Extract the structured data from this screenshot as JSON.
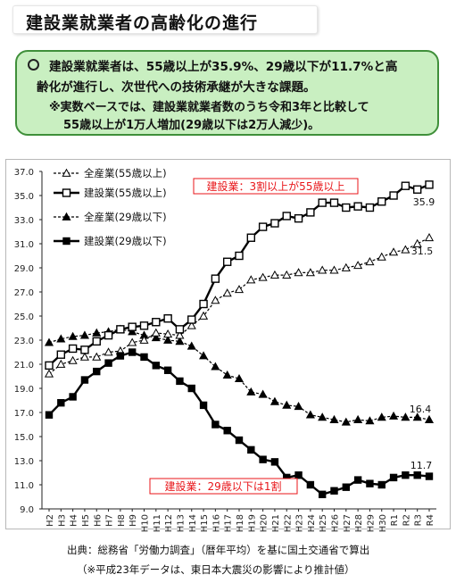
{
  "title": "建設業就業者の高齢化の進行",
  "summary": {
    "bullet_icon": "circle-bullet",
    "line1": "建設業就業者は、55歳以上が35.9%、29歳以下が11.7%と高",
    "line2": "齢化が進行し、次世代への技術承継が大きな課題。",
    "note1": "※実数ベースでは、建設業就業者数のうち令和3年と比較して",
    "note2": "55歳以上が1万人増加(29歳以下は2万人減少)。"
  },
  "chart_data": {
    "type": "line",
    "categories": [
      "H2",
      "H3",
      "H4",
      "H5",
      "H6",
      "H7",
      "H8",
      "H9",
      "H10",
      "H11",
      "H12",
      "H13",
      "H14",
      "H15",
      "H16",
      "H17",
      "H18",
      "H19",
      "H20",
      "H21",
      "H22",
      "H23",
      "H24",
      "H25",
      "H26",
      "H27",
      "H28",
      "H29",
      "H30",
      "R1",
      "R2",
      "R3",
      "R4"
    ],
    "yticks": [
      "37.0",
      "35.0",
      "33.0",
      "31.0",
      "29.0",
      "27.0",
      "25.0",
      "23.0",
      "21.0",
      "19.0",
      "17.0",
      "15.0",
      "13.0",
      "11.0",
      "9.0"
    ],
    "ylim": [
      9,
      37
    ],
    "grid": false,
    "legend_position": "top-left",
    "series": [
      {
        "name": "全産業(55歳以上)",
        "marker": "open-triangle",
        "dashed": true,
        "values": [
          20.2,
          21.0,
          21.3,
          21.6,
          21.6,
          22.0,
          22.1,
          22.8,
          23.0,
          23.6,
          23.5,
          23.4,
          24.2,
          25.0,
          26.3,
          26.9,
          27.2,
          28.0,
          28.2,
          28.4,
          28.4,
          28.6,
          28.6,
          28.8,
          28.8,
          29.0,
          29.2,
          29.5,
          29.9,
          30.3,
          30.5,
          31.0,
          31.5
        ]
      },
      {
        "name": "建設業(55歳以上)",
        "marker": "open-square",
        "dashed": false,
        "values": [
          20.9,
          21.8,
          22.3,
          22.2,
          22.9,
          23.4,
          23.9,
          24.1,
          24.2,
          24.5,
          24.8,
          23.9,
          24.7,
          26.0,
          28.1,
          29.5,
          30.0,
          31.5,
          32.4,
          32.7,
          33.3,
          33.1,
          33.6,
          34.4,
          34.4,
          34.0,
          34.1,
          34.0,
          34.5,
          35.0,
          35.8,
          35.5,
          35.9
        ]
      },
      {
        "name": "全産業(29歳以下)",
        "marker": "filled-triangle",
        "dashed": true,
        "values": [
          22.8,
          23.1,
          23.3,
          23.4,
          23.6,
          23.7,
          23.9,
          23.7,
          23.4,
          23.2,
          23.0,
          22.9,
          22.5,
          21.7,
          20.8,
          20.1,
          19.8,
          18.7,
          18.5,
          17.9,
          17.6,
          17.5,
          16.8,
          16.6,
          16.4,
          16.2,
          16.4,
          16.3,
          16.6,
          16.7,
          16.6,
          16.6,
          16.4
        ]
      },
      {
        "name": "建設業(29歳以下)",
        "marker": "filled-square",
        "dashed": false,
        "values": [
          16.8,
          17.8,
          18.3,
          19.7,
          20.4,
          21.1,
          21.7,
          22.0,
          21.6,
          20.9,
          20.5,
          19.6,
          19.0,
          17.6,
          16.0,
          15.5,
          14.7,
          13.9,
          13.1,
          12.9,
          11.6,
          11.8,
          11.0,
          10.2,
          10.5,
          10.8,
          11.4,
          11.1,
          11.0,
          11.6,
          11.8,
          11.8,
          11.7
        ]
      }
    ],
    "end_labels": [
      "35.9",
      "31.5",
      "16.4",
      "11.7"
    ],
    "annotations": [
      "建設業：3割以上が55歳以上",
      "建設業：29歳以下は1割"
    ],
    "annotation_color": "#e8161a"
  },
  "footer": {
    "source": "出典：総務省「労働力調査」（暦年平均）を基に国土交通省で算出",
    "note": "（※平成23年データは、東日本大震災の影響により推計値）"
  }
}
